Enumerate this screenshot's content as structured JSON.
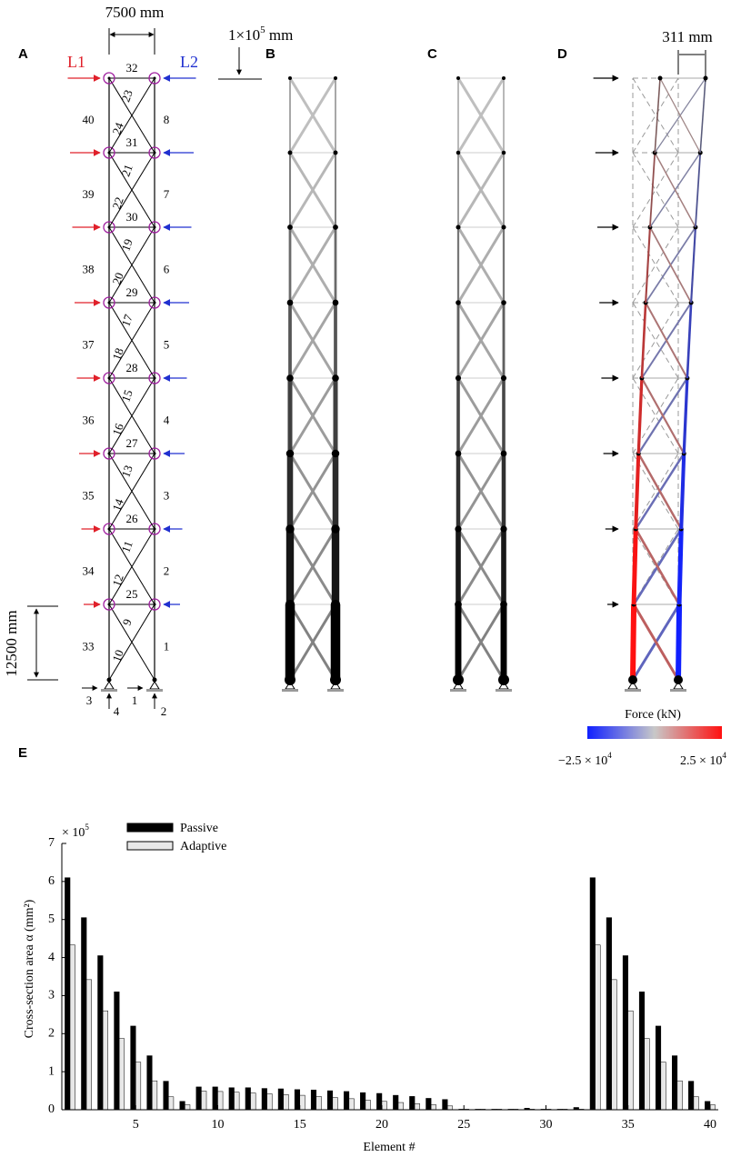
{
  "panels": {
    "a": "A",
    "b": "B",
    "c": "C",
    "d": "D",
    "e": "E"
  },
  "panel_a": {
    "width_label": "7500 mm",
    "height_label": "12500 mm",
    "load_label": "1×10",
    "load_exp": "5",
    "load_unit": " mm",
    "l1": "L1",
    "l2": "L2",
    "colors": {
      "left_load": "#e0202a",
      "right_load": "#2030d0",
      "node_ring": "#a020a0"
    },
    "horizontal_numbers": [
      "25",
      "26",
      "27",
      "28",
      "29",
      "30",
      "31",
      "32"
    ],
    "left_column_numbers": [
      "33",
      "34",
      "35",
      "36",
      "37",
      "38",
      "39",
      "40"
    ],
    "right_column_numbers": [
      "1",
      "2",
      "3",
      "4",
      "5",
      "6",
      "7",
      "8"
    ],
    "diag_lower_numbers": [
      "10",
      "12",
      "14",
      "16",
      "18",
      "20",
      "22",
      "24"
    ],
    "diag_upper_numbers": [
      "9",
      "11",
      "13",
      "15",
      "17",
      "19",
      "21",
      "23"
    ],
    "support_numbers": [
      "3",
      "4",
      "1",
      "2"
    ]
  },
  "panel_d": {
    "displacement_label": "311 mm",
    "colorbar_title": "Force (kN)",
    "colorbar_min": "−2.5 × 10",
    "colorbar_max": "2.5 × 10",
    "colorbar_exp": "4",
    "colors": {
      "compression": "#1020ff",
      "tension": "#ff1010",
      "neutral": "#c8c8c8"
    }
  },
  "chart_data": {
    "type": "bar",
    "xlabel": "Element #",
    "ylabel": "Cross-section area α (mm²)",
    "y_multiplier": "× 10",
    "y_multiplier_exp": "5",
    "xlim": [
      0.5,
      40.5
    ],
    "ylim": [
      0,
      7
    ],
    "xticks": [
      5,
      10,
      15,
      20,
      25,
      30,
      35,
      40
    ],
    "yticks": [
      0,
      1,
      2,
      3,
      4,
      5,
      6,
      7
    ],
    "legend_position": "top-left",
    "categories": [
      1,
      2,
      3,
      4,
      5,
      6,
      7,
      8,
      9,
      10,
      11,
      12,
      13,
      14,
      15,
      16,
      17,
      18,
      19,
      20,
      21,
      22,
      23,
      24,
      25,
      26,
      27,
      28,
      29,
      30,
      31,
      32,
      33,
      34,
      35,
      36,
      37,
      38,
      39,
      40
    ],
    "series": [
      {
        "name": "Passive",
        "color": "#000000",
        "values": [
          6.1,
          5.05,
          4.05,
          3.1,
          2.2,
          1.42,
          0.75,
          0.22,
          0.6,
          0.6,
          0.58,
          0.58,
          0.56,
          0.55,
          0.53,
          0.52,
          0.5,
          0.48,
          0.45,
          0.43,
          0.38,
          0.35,
          0.3,
          0.27,
          0.01,
          0.01,
          0.01,
          0.01,
          0.04,
          0.01,
          0.01,
          0.06,
          6.1,
          5.05,
          4.05,
          3.1,
          2.2,
          1.42,
          0.75,
          0.22
        ]
      },
      {
        "name": "Adaptive",
        "color": "#e8e8e8",
        "values": [
          4.33,
          3.42,
          2.6,
          1.87,
          1.25,
          0.76,
          0.34,
          0.13,
          0.49,
          0.48,
          0.46,
          0.44,
          0.42,
          0.4,
          0.38,
          0.35,
          0.32,
          0.29,
          0.25,
          0.22,
          0.19,
          0.16,
          0.13,
          0.1,
          0.0,
          0.0,
          0.0,
          0.0,
          0.0,
          0.0,
          0.0,
          0.0,
          4.33,
          3.42,
          2.6,
          1.87,
          1.25,
          0.76,
          0.34,
          0.13
        ]
      }
    ]
  }
}
